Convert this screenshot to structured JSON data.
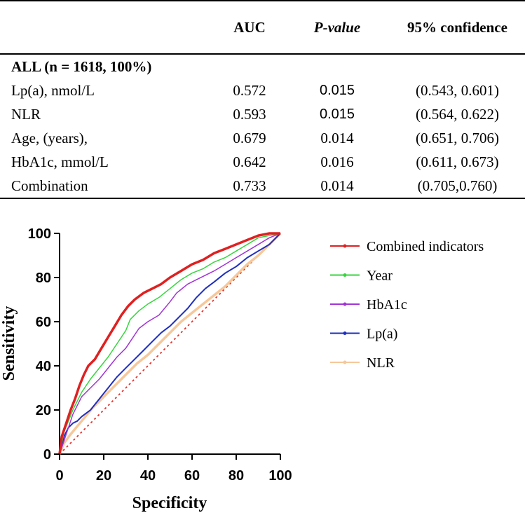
{
  "table": {
    "headers": [
      "",
      "AUC",
      "P-value",
      "95% confidence"
    ],
    "group_label": "ALL (n = 1618, 100%)",
    "rows": [
      {
        "label": "Lp(a), nmol/L",
        "auc": "0.572",
        "p": "0.015",
        "ci": "(0.543, 0.601)"
      },
      {
        "label": "NLR",
        "auc": "0.593",
        "p": "0.015",
        "ci": "(0.564, 0.622)"
      },
      {
        "label": "Age, (years),",
        "auc": "0.679",
        "p": "0.014",
        "ci": "(0.651, 0.706)"
      },
      {
        "label": "HbA1c, mmol/L",
        "auc": "0.642",
        "p": "0.016",
        "ci": "(0.611, 0.673)"
      },
      {
        "label": "Combination",
        "auc": "0.733",
        "p": "0.014",
        "ci": "(0.705,0.760)"
      }
    ]
  },
  "chart_data": {
    "type": "line",
    "title": "",
    "xlabel": "Specificity",
    "ylabel": "Sensitivity",
    "xlim": [
      0,
      100
    ],
    "ylim": [
      0,
      100
    ],
    "x_ticks": [
      0,
      20,
      40,
      60,
      80,
      100
    ],
    "y_ticks": [
      0,
      20,
      40,
      60,
      80,
      100
    ],
    "legend_position": "right",
    "reference_line": {
      "from": [
        0,
        0
      ],
      "to": [
        100,
        100
      ],
      "color": "#e8302a",
      "style": "dotted"
    },
    "series": [
      {
        "name": "NLR",
        "color": "#f6c79a",
        "width": 3.5,
        "points": [
          [
            0,
            0
          ],
          [
            2,
            5
          ],
          [
            5,
            9
          ],
          [
            10,
            15
          ],
          [
            15,
            21
          ],
          [
            20,
            26
          ],
          [
            25,
            31
          ],
          [
            30,
            36
          ],
          [
            35,
            41
          ],
          [
            40,
            45
          ],
          [
            45,
            50
          ],
          [
            50,
            55
          ],
          [
            55,
            60
          ],
          [
            60,
            64
          ],
          [
            65,
            68
          ],
          [
            70,
            72
          ],
          [
            75,
            76
          ],
          [
            80,
            81
          ],
          [
            85,
            86
          ],
          [
            90,
            90
          ],
          [
            95,
            95
          ],
          [
            100,
            100
          ]
        ]
      },
      {
        "name": "Lp(a)",
        "color": "#1f2fbf",
        "width": 2,
        "points": [
          [
            0,
            0
          ],
          [
            2,
            8
          ],
          [
            4,
            12
          ],
          [
            6,
            14
          ],
          [
            8,
            15
          ],
          [
            10,
            17
          ],
          [
            14,
            20
          ],
          [
            18,
            25
          ],
          [
            22,
            30
          ],
          [
            26,
            35
          ],
          [
            30,
            39
          ],
          [
            34,
            43
          ],
          [
            38,
            47
          ],
          [
            42,
            51
          ],
          [
            46,
            55
          ],
          [
            50,
            58
          ],
          [
            54,
            62
          ],
          [
            58,
            66
          ],
          [
            62,
            71
          ],
          [
            66,
            75
          ],
          [
            70,
            78
          ],
          [
            75,
            82
          ],
          [
            80,
            85
          ],
          [
            85,
            89
          ],
          [
            90,
            92
          ],
          [
            95,
            95
          ],
          [
            100,
            100
          ]
        ]
      },
      {
        "name": "HbA1c",
        "color": "#a234d4",
        "width": 1.5,
        "points": [
          [
            0,
            0
          ],
          [
            2,
            6
          ],
          [
            4,
            12
          ],
          [
            6,
            18
          ],
          [
            8,
            22
          ],
          [
            10,
            26
          ],
          [
            14,
            30
          ],
          [
            18,
            34
          ],
          [
            22,
            39
          ],
          [
            26,
            44
          ],
          [
            30,
            48
          ],
          [
            32,
            51
          ],
          [
            36,
            57
          ],
          [
            40,
            60
          ],
          [
            45,
            63
          ],
          [
            50,
            69
          ],
          [
            53,
            73
          ],
          [
            58,
            77
          ],
          [
            62,
            79
          ],
          [
            66,
            81
          ],
          [
            70,
            83
          ],
          [
            75,
            86
          ],
          [
            80,
            89
          ],
          [
            85,
            92
          ],
          [
            90,
            95
          ],
          [
            95,
            98
          ],
          [
            100,
            100
          ]
        ]
      },
      {
        "name": "Year",
        "color": "#36d63d",
        "width": 1.5,
        "points": [
          [
            0,
            0
          ],
          [
            2,
            10
          ],
          [
            4,
            15
          ],
          [
            6,
            20
          ],
          [
            8,
            24
          ],
          [
            10,
            28
          ],
          [
            14,
            34
          ],
          [
            18,
            39
          ],
          [
            22,
            44
          ],
          [
            26,
            50
          ],
          [
            30,
            56
          ],
          [
            32,
            61
          ],
          [
            36,
            65
          ],
          [
            40,
            68
          ],
          [
            45,
            71
          ],
          [
            50,
            75
          ],
          [
            55,
            79
          ],
          [
            60,
            82
          ],
          [
            65,
            84
          ],
          [
            70,
            87
          ],
          [
            75,
            89
          ],
          [
            80,
            92
          ],
          [
            85,
            95
          ],
          [
            90,
            98
          ],
          [
            95,
            99
          ],
          [
            100,
            100
          ]
        ]
      },
      {
        "name": "Combined indicators",
        "color": "#e02020",
        "width": 3.5,
        "points": [
          [
            0,
            0
          ],
          [
            1,
            8
          ],
          [
            3,
            14
          ],
          [
            5,
            20
          ],
          [
            7,
            25
          ],
          [
            9,
            31
          ],
          [
            11,
            36
          ],
          [
            13,
            40
          ],
          [
            16,
            43
          ],
          [
            19,
            48
          ],
          [
            22,
            53
          ],
          [
            25,
            58
          ],
          [
            28,
            63
          ],
          [
            31,
            67
          ],
          [
            34,
            70
          ],
          [
            38,
            73
          ],
          [
            42,
            75
          ],
          [
            46,
            77
          ],
          [
            50,
            80
          ],
          [
            55,
            83
          ],
          [
            60,
            86
          ],
          [
            65,
            88
          ],
          [
            70,
            91
          ],
          [
            75,
            93
          ],
          [
            80,
            95
          ],
          [
            85,
            97
          ],
          [
            90,
            99
          ],
          [
            95,
            100
          ],
          [
            100,
            100
          ]
        ]
      }
    ],
    "legend": [
      "Combined indicators",
      "Year",
      "HbA1c",
      "Lp(a)",
      "NLR"
    ]
  }
}
